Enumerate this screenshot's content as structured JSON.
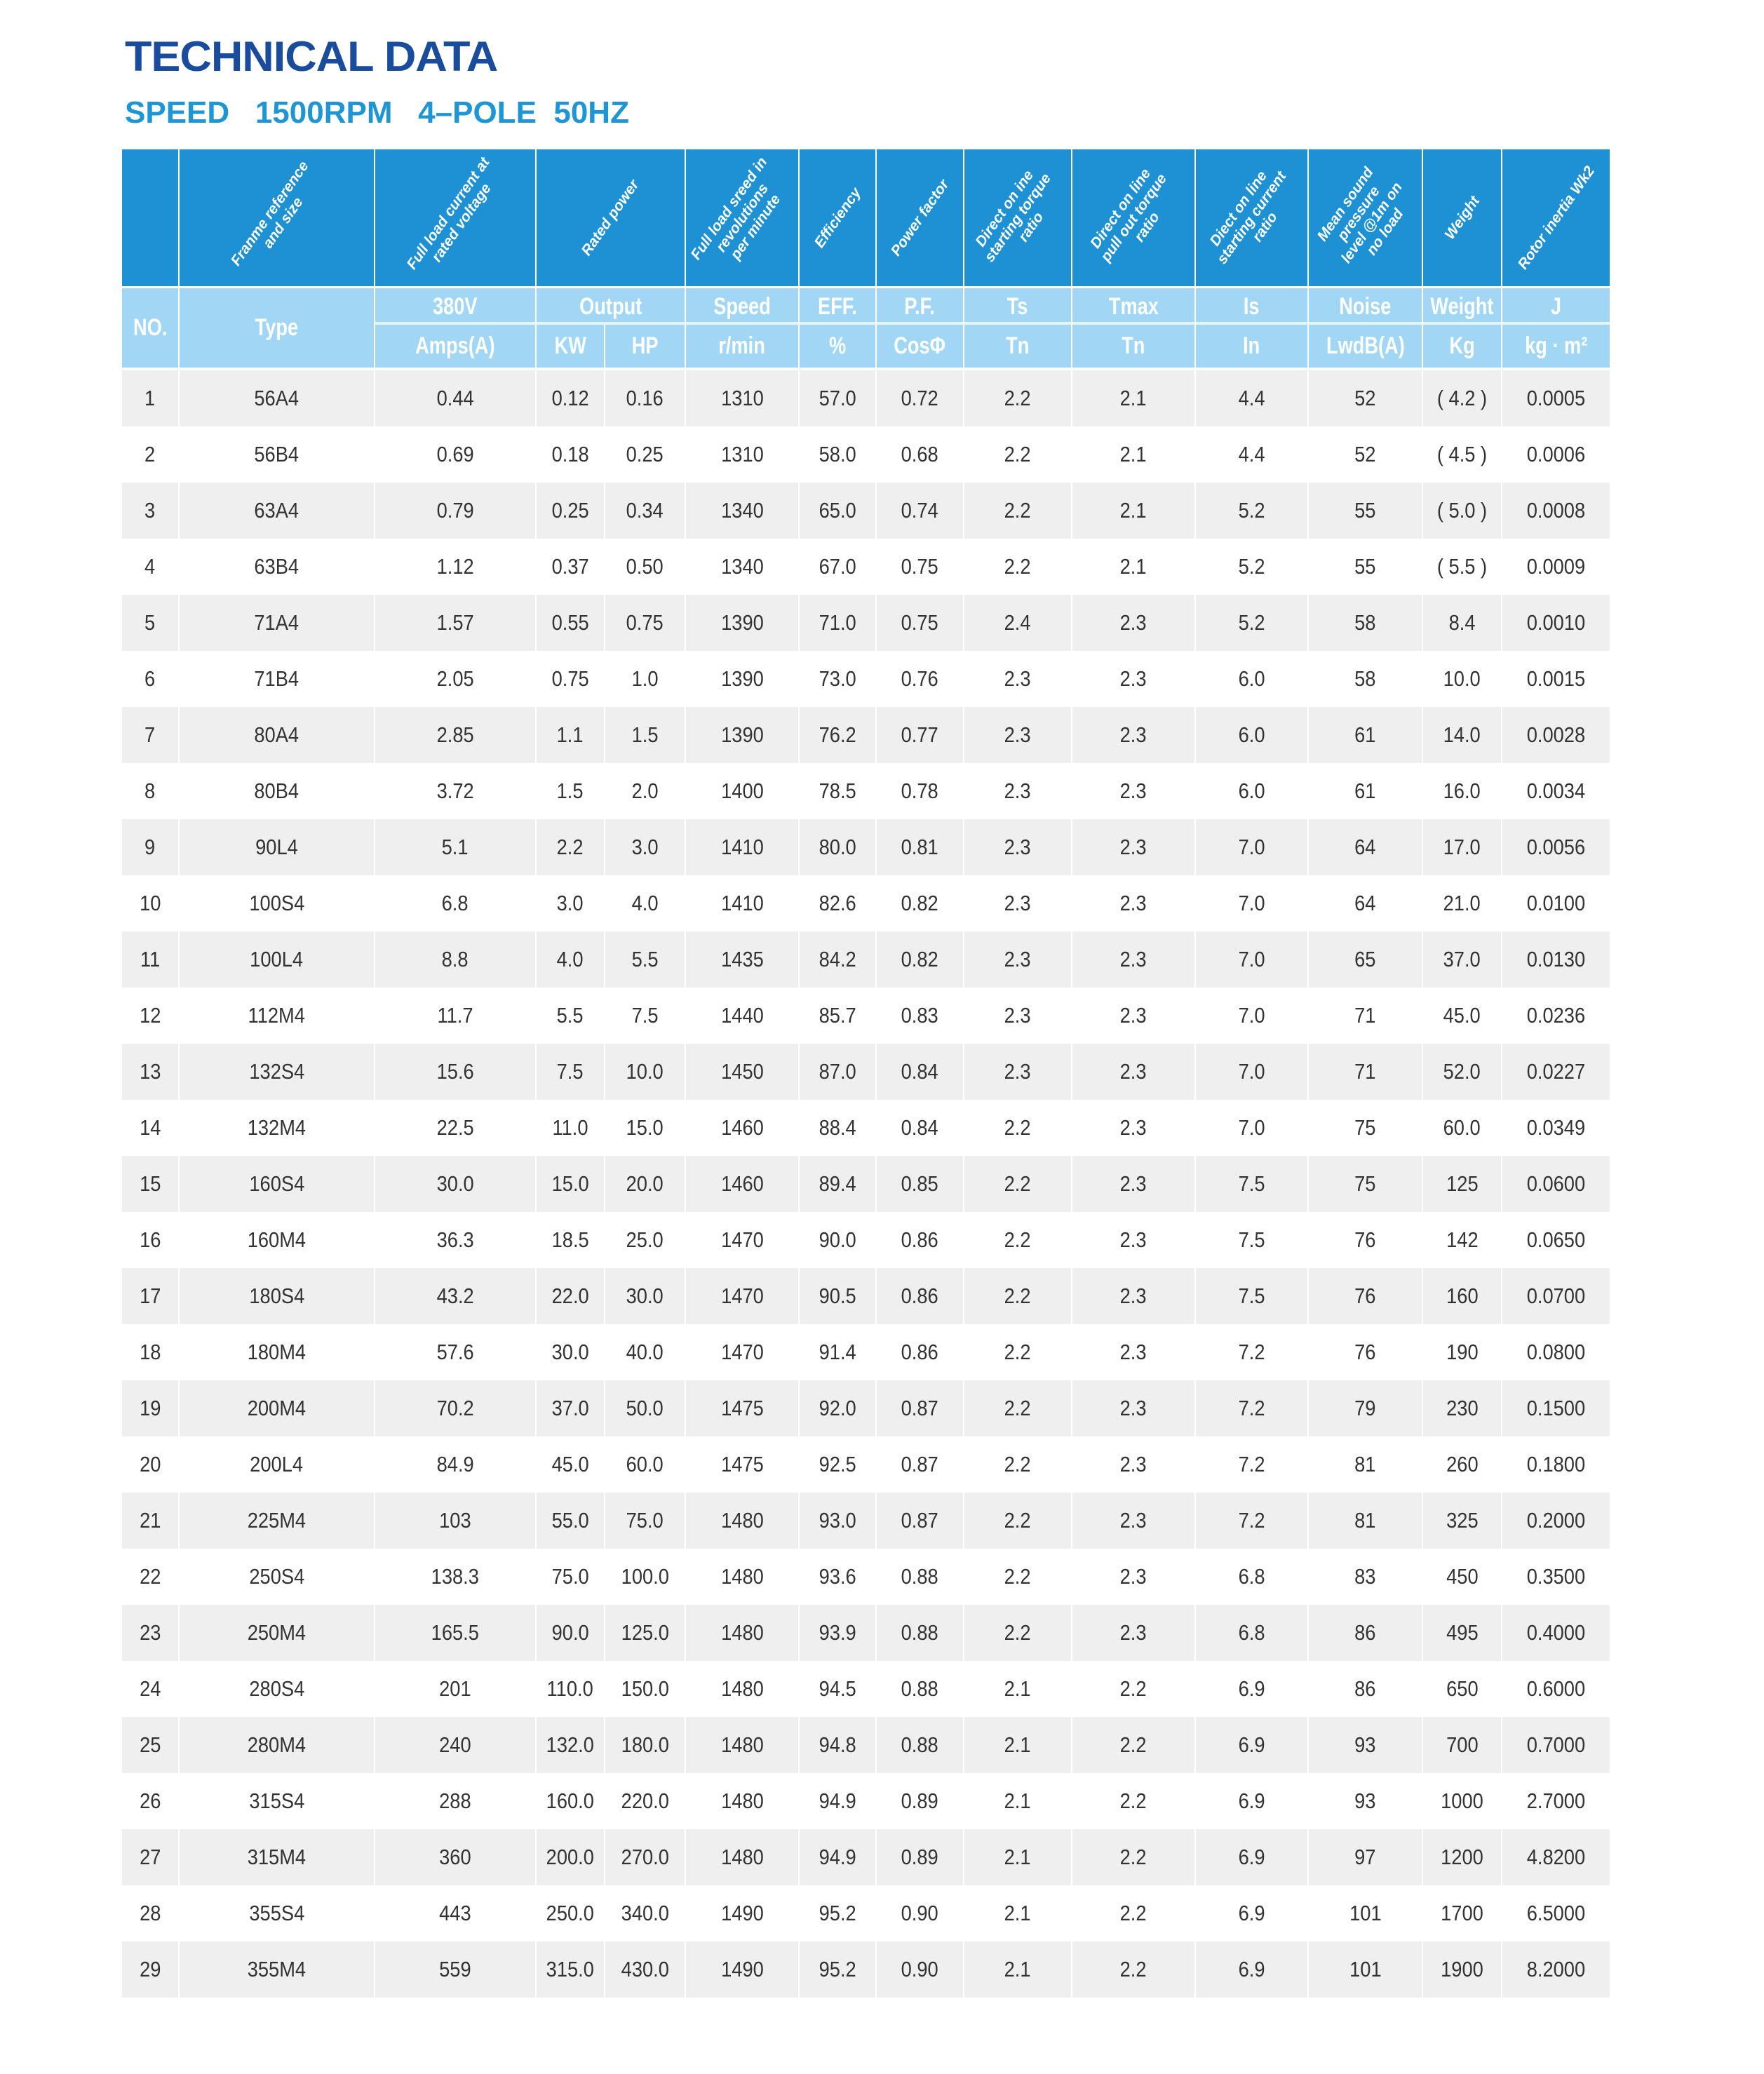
{
  "title": "TECHNICAL DATA",
  "subtitle": "SPEED   1500RPM   4–POLE  50HZ",
  "colors": {
    "title": "#1a4c9e",
    "subtitle": "#1e95d5",
    "header_dark": "#1e90d4",
    "header_light": "#a1d7f4",
    "row_alt": "#efefef"
  },
  "header_top": [
    {
      "label": "",
      "span": 1
    },
    {
      "label": "Franme reference\nand size",
      "span": 1
    },
    {
      "label": "Full load current at\nrated voltage",
      "span": 1
    },
    {
      "label": "Rated power",
      "span": 2
    },
    {
      "label": "Full load sreed in\nrevolutions\nper minute",
      "span": 1
    },
    {
      "label": "Efficiency",
      "span": 1
    },
    {
      "label": "Power factor",
      "span": 1
    },
    {
      "label": "Direct on ine\nstarting torque\nratio",
      "span": 1
    },
    {
      "label": "Direct on line\npull out torque\nratio",
      "span": 1
    },
    {
      "label": "Diect on line\nstarting current\nratio",
      "span": 1
    },
    {
      "label": "Mean sound\npressure\nlevel @1m on\nno load",
      "span": 1
    },
    {
      "label": "Weight",
      "span": 1
    },
    {
      "label": "Rotor inertia Wk2",
      "span": 1
    }
  ],
  "header_sub1": [
    {
      "label": "NO.",
      "span": 1,
      "rowspan": 2
    },
    {
      "label": "Type",
      "span": 1,
      "rowspan": 2
    },
    {
      "label": "380V",
      "span": 1
    },
    {
      "label": "Output",
      "span": 2
    },
    {
      "label": "Speed",
      "span": 1
    },
    {
      "label": "EFF.",
      "span": 1
    },
    {
      "label": "P.F.",
      "span": 1
    },
    {
      "label": "Ts",
      "span": 1
    },
    {
      "label": "Tmax",
      "span": 1
    },
    {
      "label": "Is",
      "span": 1
    },
    {
      "label": "Noise",
      "span": 1
    },
    {
      "label": "Weight",
      "span": 1
    },
    {
      "label": "J",
      "span": 1
    }
  ],
  "header_sub2": [
    "Amps(A)",
    "KW",
    "HP",
    "r/min",
    "%",
    "CosΦ",
    "Tn",
    "Tn",
    "In",
    "LwdB(A)",
    "Kg",
    "kg · m²"
  ],
  "rows": [
    [
      "1",
      "56A4",
      "0.44",
      "0.12",
      "0.16",
      "1310",
      "57.0",
      "0.72",
      "2.2",
      "2.1",
      "4.4",
      "52",
      "( 4.2 )",
      "0.0005"
    ],
    [
      "2",
      "56B4",
      "0.69",
      "0.18",
      "0.25",
      "1310",
      "58.0",
      "0.68",
      "2.2",
      "2.1",
      "4.4",
      "52",
      "( 4.5 )",
      "0.0006"
    ],
    [
      "3",
      "63A4",
      "0.79",
      "0.25",
      "0.34",
      "1340",
      "65.0",
      "0.74",
      "2.2",
      "2.1",
      "5.2",
      "55",
      "( 5.0 )",
      "0.0008"
    ],
    [
      "4",
      "63B4",
      "1.12",
      "0.37",
      "0.50",
      "1340",
      "67.0",
      "0.75",
      "2.2",
      "2.1",
      "5.2",
      "55",
      "( 5.5 )",
      "0.0009"
    ],
    [
      "5",
      "71A4",
      "1.57",
      "0.55",
      "0.75",
      "1390",
      "71.0",
      "0.75",
      "2.4",
      "2.3",
      "5.2",
      "58",
      "8.4",
      "0.0010"
    ],
    [
      "6",
      "71B4",
      "2.05",
      "0.75",
      "1.0",
      "1390",
      "73.0",
      "0.76",
      "2.3",
      "2.3",
      "6.0",
      "58",
      "10.0",
      "0.0015"
    ],
    [
      "7",
      "80A4",
      "2.85",
      "1.1",
      "1.5",
      "1390",
      "76.2",
      "0.77",
      "2.3",
      "2.3",
      "6.0",
      "61",
      "14.0",
      "0.0028"
    ],
    [
      "8",
      "80B4",
      "3.72",
      "1.5",
      "2.0",
      "1400",
      "78.5",
      "0.78",
      "2.3",
      "2.3",
      "6.0",
      "61",
      "16.0",
      "0.0034"
    ],
    [
      "9",
      "90L4",
      "5.1",
      "2.2",
      "3.0",
      "1410",
      "80.0",
      "0.81",
      "2.3",
      "2.3",
      "7.0",
      "64",
      "17.0",
      "0.0056"
    ],
    [
      "10",
      "100S4",
      "6.8",
      "3.0",
      "4.0",
      "1410",
      "82.6",
      "0.82",
      "2.3",
      "2.3",
      "7.0",
      "64",
      "21.0",
      "0.0100"
    ],
    [
      "11",
      "100L4",
      "8.8",
      "4.0",
      "5.5",
      "1435",
      "84.2",
      "0.82",
      "2.3",
      "2.3",
      "7.0",
      "65",
      "37.0",
      "0.0130"
    ],
    [
      "12",
      "112M4",
      "11.7",
      "5.5",
      "7.5",
      "1440",
      "85.7",
      "0.83",
      "2.3",
      "2.3",
      "7.0",
      "71",
      "45.0",
      "0.0236"
    ],
    [
      "13",
      "132S4",
      "15.6",
      "7.5",
      "10.0",
      "1450",
      "87.0",
      "0.84",
      "2.3",
      "2.3",
      "7.0",
      "71",
      "52.0",
      "0.0227"
    ],
    [
      "14",
      "132M4",
      "22.5",
      "11.0",
      "15.0",
      "1460",
      "88.4",
      "0.84",
      "2.2",
      "2.3",
      "7.0",
      "75",
      "60.0",
      "0.0349"
    ],
    [
      "15",
      "160S4",
      "30.0",
      "15.0",
      "20.0",
      "1460",
      "89.4",
      "0.85",
      "2.2",
      "2.3",
      "7.5",
      "75",
      "125",
      "0.0600"
    ],
    [
      "16",
      "160M4",
      "36.3",
      "18.5",
      "25.0",
      "1470",
      "90.0",
      "0.86",
      "2.2",
      "2.3",
      "7.5",
      "76",
      "142",
      "0.0650"
    ],
    [
      "17",
      "180S4",
      "43.2",
      "22.0",
      "30.0",
      "1470",
      "90.5",
      "0.86",
      "2.2",
      "2.3",
      "7.5",
      "76",
      "160",
      "0.0700"
    ],
    [
      "18",
      "180M4",
      "57.6",
      "30.0",
      "40.0",
      "1470",
      "91.4",
      "0.86",
      "2.2",
      "2.3",
      "7.2",
      "76",
      "190",
      "0.0800"
    ],
    [
      "19",
      "200M4",
      "70.2",
      "37.0",
      "50.0",
      "1475",
      "92.0",
      "0.87",
      "2.2",
      "2.3",
      "7.2",
      "79",
      "230",
      "0.1500"
    ],
    [
      "20",
      "200L4",
      "84.9",
      "45.0",
      "60.0",
      "1475",
      "92.5",
      "0.87",
      "2.2",
      "2.3",
      "7.2",
      "81",
      "260",
      "0.1800"
    ],
    [
      "21",
      "225M4",
      "103",
      "55.0",
      "75.0",
      "1480",
      "93.0",
      "0.87",
      "2.2",
      "2.3",
      "7.2",
      "81",
      "325",
      "0.2000"
    ],
    [
      "22",
      "250S4",
      "138.3",
      "75.0",
      "100.0",
      "1480",
      "93.6",
      "0.88",
      "2.2",
      "2.3",
      "6.8",
      "83",
      "450",
      "0.3500"
    ],
    [
      "23",
      "250M4",
      "165.5",
      "90.0",
      "125.0",
      "1480",
      "93.9",
      "0.88",
      "2.2",
      "2.3",
      "6.8",
      "86",
      "495",
      "0.4000"
    ],
    [
      "24",
      "280S4",
      "201",
      "110.0",
      "150.0",
      "1480",
      "94.5",
      "0.88",
      "2.1",
      "2.2",
      "6.9",
      "86",
      "650",
      "0.6000"
    ],
    [
      "25",
      "280M4",
      "240",
      "132.0",
      "180.0",
      "1480",
      "94.8",
      "0.88",
      "2.1",
      "2.2",
      "6.9",
      "93",
      "700",
      "0.7000"
    ],
    [
      "26",
      "315S4",
      "288",
      "160.0",
      "220.0",
      "1480",
      "94.9",
      "0.89",
      "2.1",
      "2.2",
      "6.9",
      "93",
      "1000",
      "2.7000"
    ],
    [
      "27",
      "315M4",
      "360",
      "200.0",
      "270.0",
      "1480",
      "94.9",
      "0.89",
      "2.1",
      "2.2",
      "6.9",
      "97",
      "1200",
      "4.8200"
    ],
    [
      "28",
      "355S4",
      "443",
      "250.0",
      "340.0",
      "1490",
      "95.2",
      "0.90",
      "2.1",
      "2.2",
      "6.9",
      "101",
      "1700",
      "6.5000"
    ],
    [
      "29",
      "355M4",
      "559",
      "315.0",
      "430.0",
      "1490",
      "95.2",
      "0.90",
      "2.1",
      "2.2",
      "6.9",
      "101",
      "1900",
      "8.2000"
    ]
  ]
}
